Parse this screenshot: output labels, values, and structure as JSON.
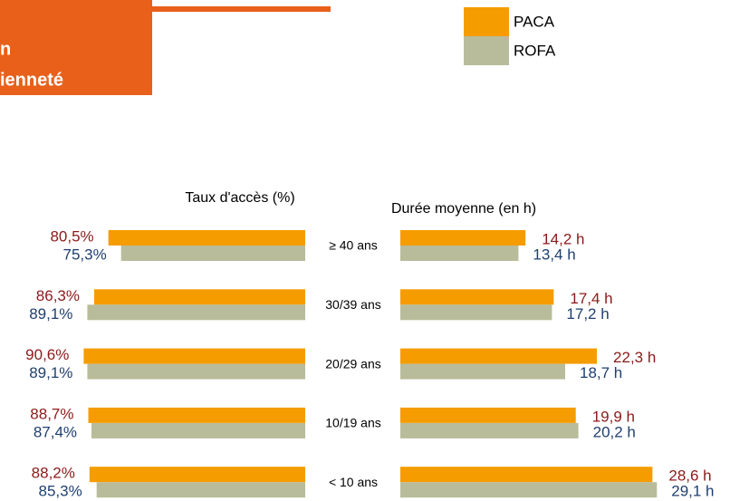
{
  "header": {
    "line1": "n",
    "line2": "ienneté"
  },
  "chart_data": [
    {
      "type": "hbar-left",
      "title": "Taux d'accès (%)",
      "categories": [
        "≥ 40 ans",
        "30/39 ans",
        "20/29 ans",
        "10/19 ans",
        "< 10 ans"
      ],
      "xlim": [
        0,
        100
      ],
      "series": [
        {
          "name": "PACA",
          "color": "#f59c00",
          "label_color": "#8b1a1a",
          "values": [
            80.5,
            86.3,
            90.6,
            88.7,
            88.2
          ],
          "value_labels": [
            "80,5%",
            "86,3%",
            "90,6%",
            "88,7%",
            "88,2%"
          ]
        },
        {
          "name": "ROFA",
          "color": "#b9bc9a",
          "label_color": "#1f3f6e",
          "values": [
            75.3,
            89.1,
            89.1,
            87.4,
            85.3
          ],
          "value_labels": [
            "75,3%",
            "89,1%",
            "89,1%",
            "87,4%",
            "85,3%"
          ]
        }
      ]
    },
    {
      "type": "hbar-right",
      "title": "Durée moyenne (en h)",
      "xlim": [
        0,
        30
      ],
      "series": [
        {
          "color": "#f59c00",
          "label_color": "#8b1a1a",
          "values": [
            14.2,
            17.4,
            22.3,
            19.9,
            28.6
          ],
          "value_labels": [
            "14,2 h",
            "17,4 h",
            "22,3 h",
            "19,9 h",
            "28,6 h"
          ]
        },
        {
          "color": "#b9bc9a",
          "label_color": "#1f3f6e",
          "values": [
            13.4,
            17.2,
            18.7,
            20.2,
            29.1
          ],
          "value_labels": [
            "13,4 h",
            "17,2 h",
            "18,7 h",
            "20,2 h",
            "29,1 h"
          ]
        }
      ]
    }
  ]
}
